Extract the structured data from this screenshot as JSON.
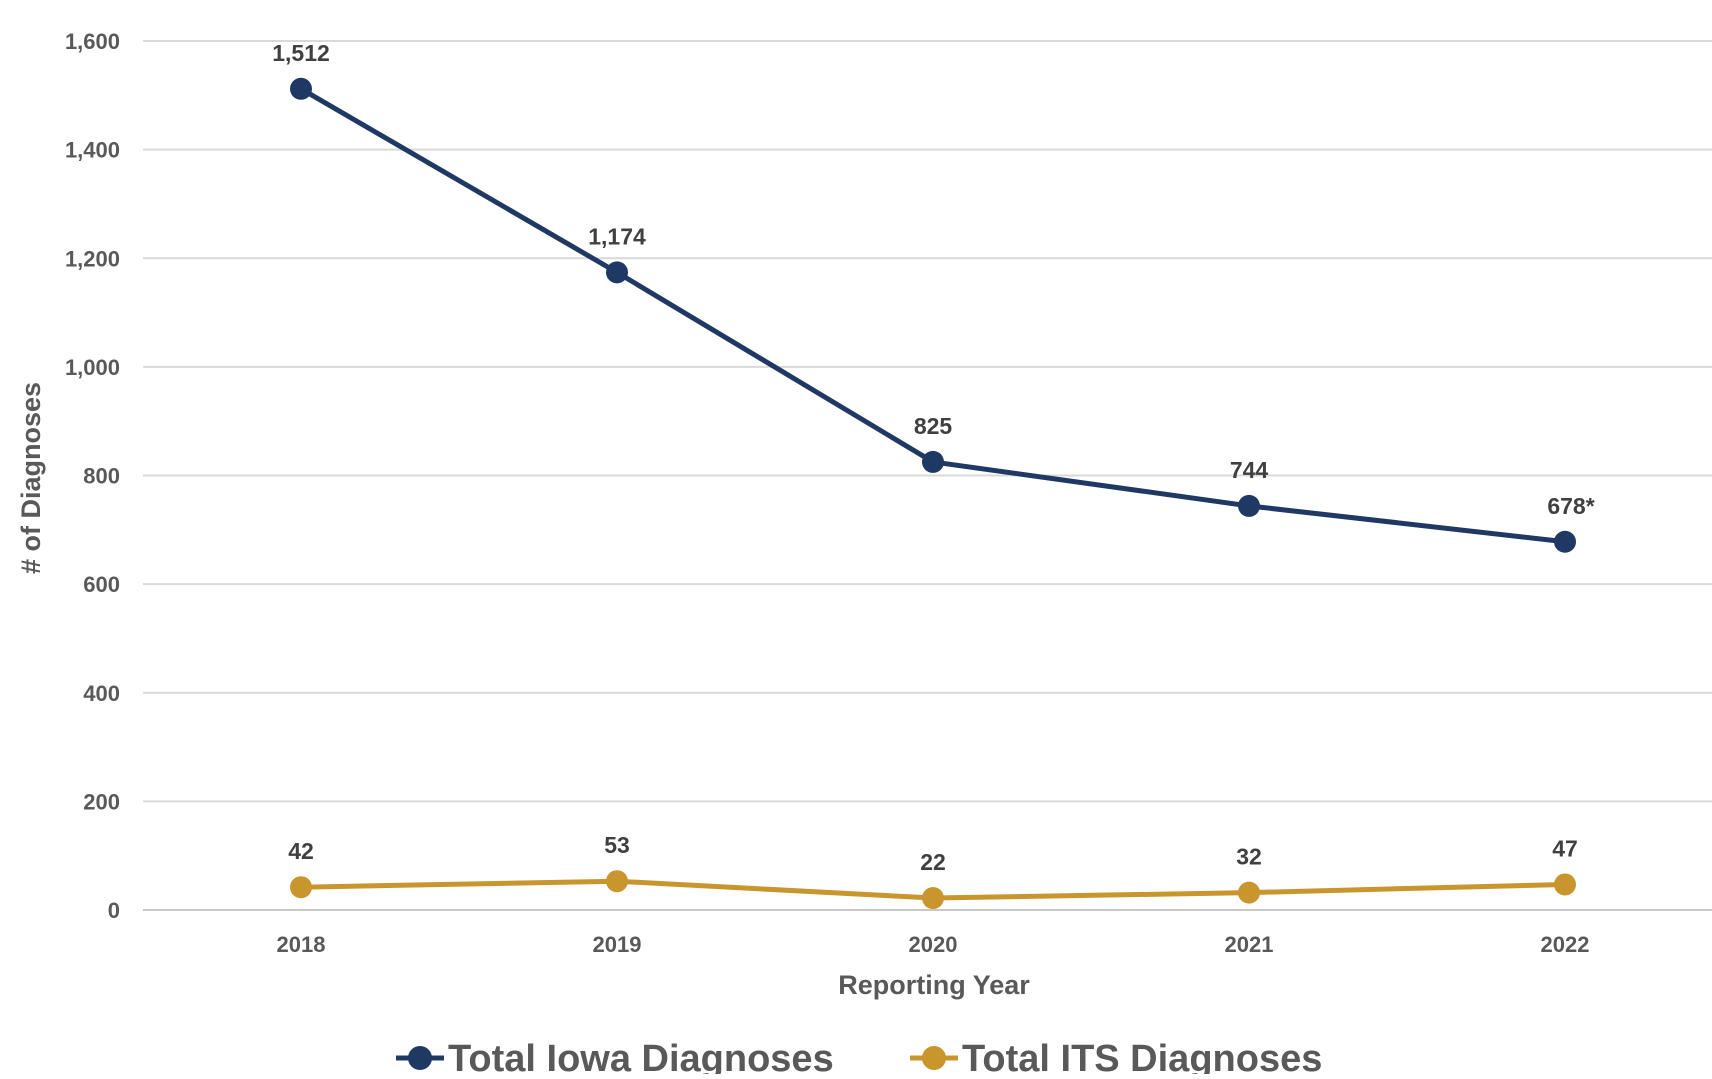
{
  "chart_data": {
    "type": "line",
    "title": "",
    "xlabel": "Reporting Year",
    "ylabel": "# of Diagnoses",
    "categories": [
      "2018",
      "2019",
      "2020",
      "2021",
      "2022"
    ],
    "ylim": [
      0,
      1600
    ],
    "yticks": [
      0,
      200,
      400,
      600,
      800,
      1000,
      1200,
      1400,
      1600
    ],
    "ytick_labels": [
      "0",
      "200",
      "400",
      "600",
      "800",
      "1,000",
      "1,200",
      "1,400",
      "1,600"
    ],
    "grid": true,
    "legend_position": "bottom",
    "series": [
      {
        "name": "Total Iowa Diagnoses",
        "color": "#1f3864",
        "values": [
          1512,
          1174,
          825,
          744,
          678
        ],
        "labels": [
          "1,512",
          "1,174",
          "825",
          "744",
          "678*"
        ]
      },
      {
        "name": "Total ITS Diagnoses",
        "color": "#c9962e",
        "values": [
          42,
          53,
          22,
          32,
          47
        ],
        "labels": [
          "42",
          "53",
          "22",
          "32",
          "47"
        ]
      }
    ]
  }
}
